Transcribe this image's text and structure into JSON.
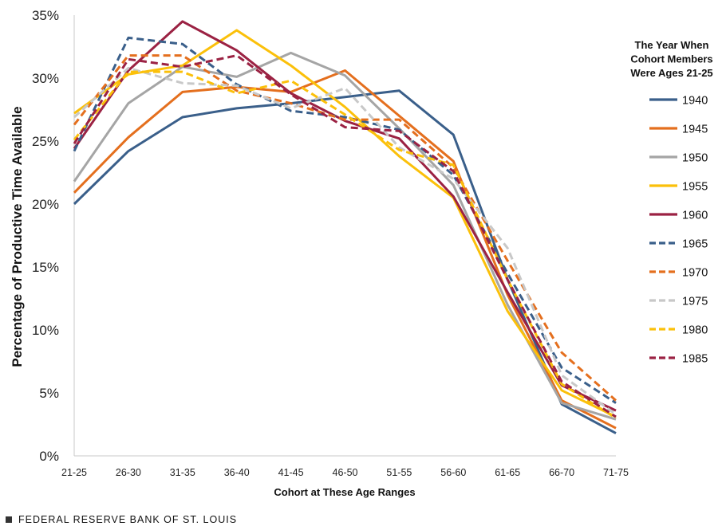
{
  "footer": {
    "source": "FEDERAL RESERVE BANK OF ST. LOUIS"
  },
  "chart_data": {
    "type": "line",
    "title": "",
    "xlabel": "Cohort at These Age Ranges",
    "ylabel": "Percentage of Productive Time Available",
    "ylim": [
      0,
      35
    ],
    "yticks": [
      "0%",
      "5%",
      "10%",
      "15%",
      "20%",
      "25%",
      "30%",
      "35%"
    ],
    "grid": false,
    "legend_title": [
      "The Year When",
      "Cohort Members",
      "Were Ages 21-25"
    ],
    "legend_position": "right",
    "categories": [
      "21-25",
      "26-30",
      "31-35",
      "36-40",
      "41-45",
      "46-50",
      "51-55",
      "56-60",
      "61-65",
      "66-70",
      "71-75"
    ],
    "series": [
      {
        "name": "1940",
        "color": "#3a5f8a",
        "dash": false,
        "values": [
          20.0,
          24.2,
          26.9,
          27.6,
          28.0,
          28.5,
          29.0,
          25.5,
          14.0,
          4.1,
          1.8
        ]
      },
      {
        "name": "1945",
        "color": "#e46f1e",
        "dash": false,
        "values": [
          20.9,
          25.3,
          28.9,
          29.3,
          28.9,
          30.6,
          27.0,
          23.4,
          12.8,
          4.4,
          2.2
        ]
      },
      {
        "name": "1950",
        "color": "#a5a5a5",
        "dash": false,
        "values": [
          21.8,
          28.0,
          30.9,
          30.1,
          32.0,
          30.2,
          26.0,
          21.5,
          12.0,
          4.2,
          2.9
        ]
      },
      {
        "name": "1955",
        "color": "#fbc00a",
        "dash": false,
        "values": [
          27.2,
          30.3,
          31.0,
          33.8,
          31.0,
          27.7,
          23.8,
          20.5,
          11.5,
          5.2,
          3.1
        ]
      },
      {
        "name": "1960",
        "color": "#9b2243",
        "dash": false,
        "values": [
          24.4,
          30.6,
          34.5,
          32.2,
          28.8,
          26.6,
          25.2,
          20.6,
          13.0,
          5.6,
          3.6
        ]
      },
      {
        "name": "1965",
        "color": "#3a5f8a",
        "dash": true,
        "values": [
          24.2,
          33.2,
          32.7,
          29.5,
          27.4,
          26.9,
          25.9,
          22.3,
          14.5,
          7.0,
          4.2
        ]
      },
      {
        "name": "1970",
        "color": "#e46f1e",
        "dash": true,
        "values": [
          26.3,
          31.8,
          31.8,
          29.0,
          28.0,
          26.7,
          26.7,
          22.9,
          15.5,
          8.2,
          4.4
        ]
      },
      {
        "name": "1975",
        "color": "#c8c8c8",
        "dash": true,
        "values": [
          26.9,
          30.8,
          29.6,
          29.4,
          27.6,
          29.2,
          24.5,
          22.0,
          16.5,
          6.4,
          3.3
        ]
      },
      {
        "name": "1980",
        "color": "#fbc00a",
        "dash": true,
        "values": [
          25.1,
          30.5,
          30.5,
          28.8,
          29.8,
          27.1,
          24.3,
          23.1,
          14.0,
          5.7,
          3.0
        ]
      },
      {
        "name": "1985",
        "color": "#9b2243",
        "dash": true,
        "values": [
          24.8,
          31.5,
          30.9,
          31.8,
          28.7,
          26.1,
          25.8,
          22.6,
          14.0,
          5.9,
          3.1
        ]
      }
    ]
  }
}
